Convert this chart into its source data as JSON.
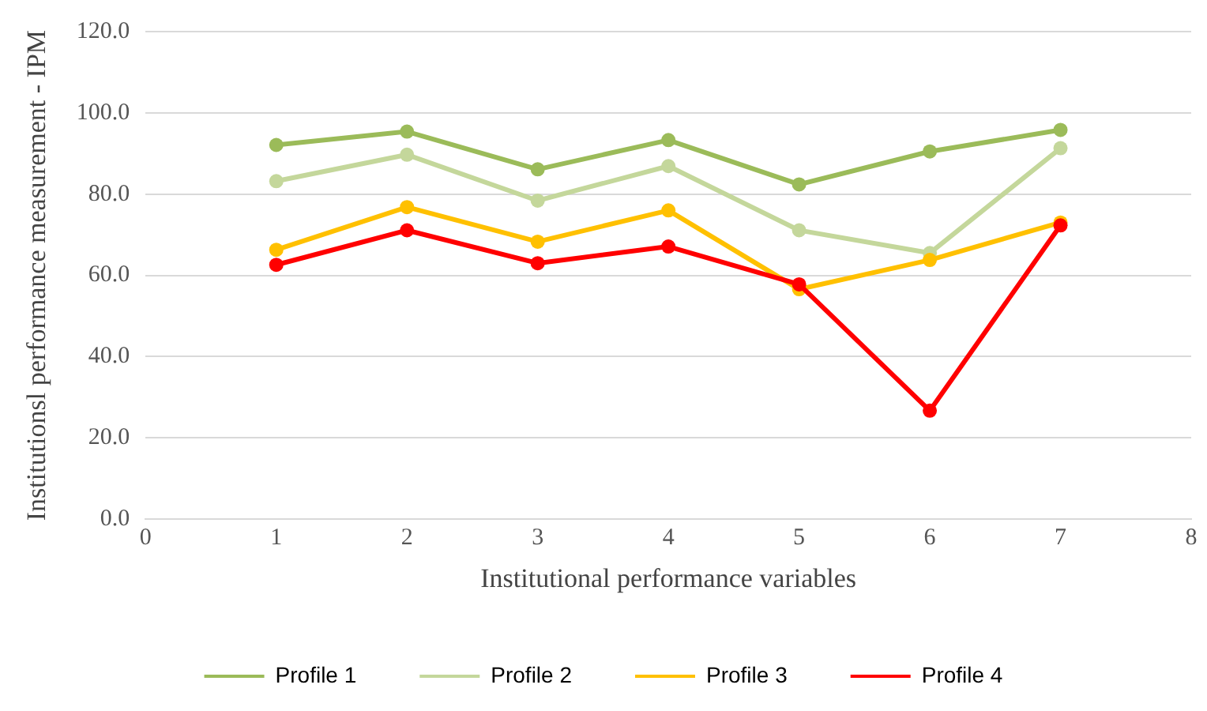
{
  "chart_data": {
    "type": "line",
    "xlabel": "Institutional performance variables",
    "ylabel": "Institutionsl performance measurement - IPM",
    "x": [
      1,
      2,
      3,
      4,
      5,
      6,
      7
    ],
    "series": [
      {
        "name": "Profile 1",
        "color": "#9bbb59",
        "values": [
          92.1,
          95.4,
          86.1,
          93.3,
          82.4,
          90.5,
          95.8
        ]
      },
      {
        "name": "Profile 2",
        "color": "#c4d79b",
        "values": [
          83.2,
          89.7,
          78.4,
          86.9,
          71.1,
          65.5,
          91.3
        ]
      },
      {
        "name": "Profile 3",
        "color": "#ffc000",
        "values": [
          66.3,
          76.8,
          68.3,
          76.0,
          56.6,
          63.8,
          73.0
        ]
      },
      {
        "name": "Profile 4",
        "color": "#ff0000",
        "values": [
          62.6,
          71.1,
          63.0,
          67.1,
          57.8,
          26.7,
          72.3
        ]
      }
    ],
    "xlim": [
      0,
      8
    ],
    "xticks": [
      0,
      1,
      2,
      3,
      4,
      5,
      6,
      7,
      8
    ],
    "ylim": [
      0,
      120
    ],
    "yticks": [
      {
        "value": 0,
        "label": "0.0"
      },
      {
        "value": 20,
        "label": "20.0"
      },
      {
        "value": 40,
        "label": "40.0"
      },
      {
        "value": 60,
        "label": "60.0"
      },
      {
        "value": 80,
        "label": "80.0"
      },
      {
        "value": 100,
        "label": "100.0"
      },
      {
        "value": 120,
        "label": "120.0"
      }
    ],
    "grid": "y",
    "legend": "bottom",
    "marker": "circle",
    "line_style": "solid"
  }
}
